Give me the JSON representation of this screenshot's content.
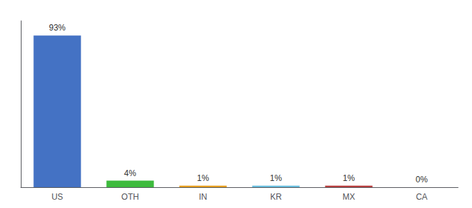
{
  "chart_data": {
    "type": "bar",
    "categories": [
      "US",
      "OTH",
      "IN",
      "KR",
      "MX",
      "CA"
    ],
    "values": [
      93,
      4,
      1,
      1,
      1,
      0
    ],
    "value_labels": [
      "93%",
      "4%",
      "1%",
      "1%",
      "1%",
      "0%"
    ],
    "colors": [
      "#4472c4",
      "#3dbb3d",
      "#e8a020",
      "#6bbfdf",
      "#b94040",
      "#b94040"
    ],
    "ylim": [
      0,
      102
    ],
    "data_labels": true,
    "tick_labels": "x",
    "grid": false
  }
}
